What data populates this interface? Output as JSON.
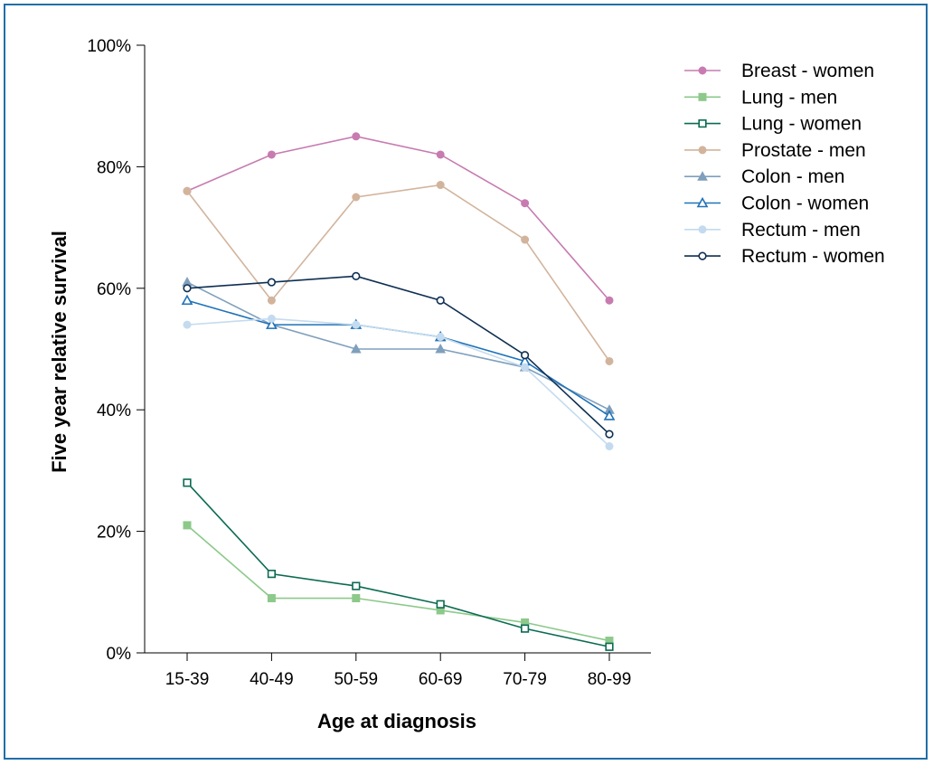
{
  "chart_data": {
    "type": "line",
    "title": "",
    "xlabel": "Age at diagnosis",
    "ylabel": "Five year relative survival",
    "categories": [
      "15-39",
      "40-49",
      "50-59",
      "60-69",
      "70-79",
      "80-99"
    ],
    "ylim": [
      0,
      100
    ],
    "yticks": [
      0,
      20,
      40,
      60,
      80,
      100
    ],
    "ytick_labels": [
      "0%",
      "20%",
      "40%",
      "60%",
      "80%",
      "100%"
    ],
    "grid": false,
    "legend_position": "right",
    "series": [
      {
        "name": "Breast - women",
        "color": "#c77bb0",
        "marker": "circle-filled",
        "values": [
          76,
          82,
          85,
          82,
          74,
          58
        ]
      },
      {
        "name": "Lung - men",
        "color": "#8cc98a",
        "marker": "square-filled",
        "values": [
          21,
          9,
          9,
          7,
          5,
          2
        ]
      },
      {
        "name": "Lung - women",
        "color": "#0b6b52",
        "marker": "square-open",
        "values": [
          28,
          13,
          11,
          8,
          4,
          1
        ]
      },
      {
        "name": "Prostate - men",
        "color": "#d2b49c",
        "marker": "circle-filled",
        "values": [
          76,
          58,
          75,
          77,
          68,
          48
        ]
      },
      {
        "name": "Colon - men",
        "color": "#7f9fbd",
        "marker": "triangle-filled",
        "values": [
          61,
          54,
          50,
          50,
          47,
          40
        ]
      },
      {
        "name": "Colon - women",
        "color": "#1f72b8",
        "marker": "triangle-open",
        "values": [
          58,
          54,
          54,
          52,
          48,
          39
        ]
      },
      {
        "name": "Rectum - men",
        "color": "#c4dbef",
        "marker": "circle-filled",
        "values": [
          54,
          55,
          54,
          52,
          47,
          34
        ]
      },
      {
        "name": "Rectum - women",
        "color": "#0e2f52",
        "marker": "circle-open",
        "values": [
          60,
          61,
          62,
          58,
          49,
          36
        ]
      }
    ]
  }
}
